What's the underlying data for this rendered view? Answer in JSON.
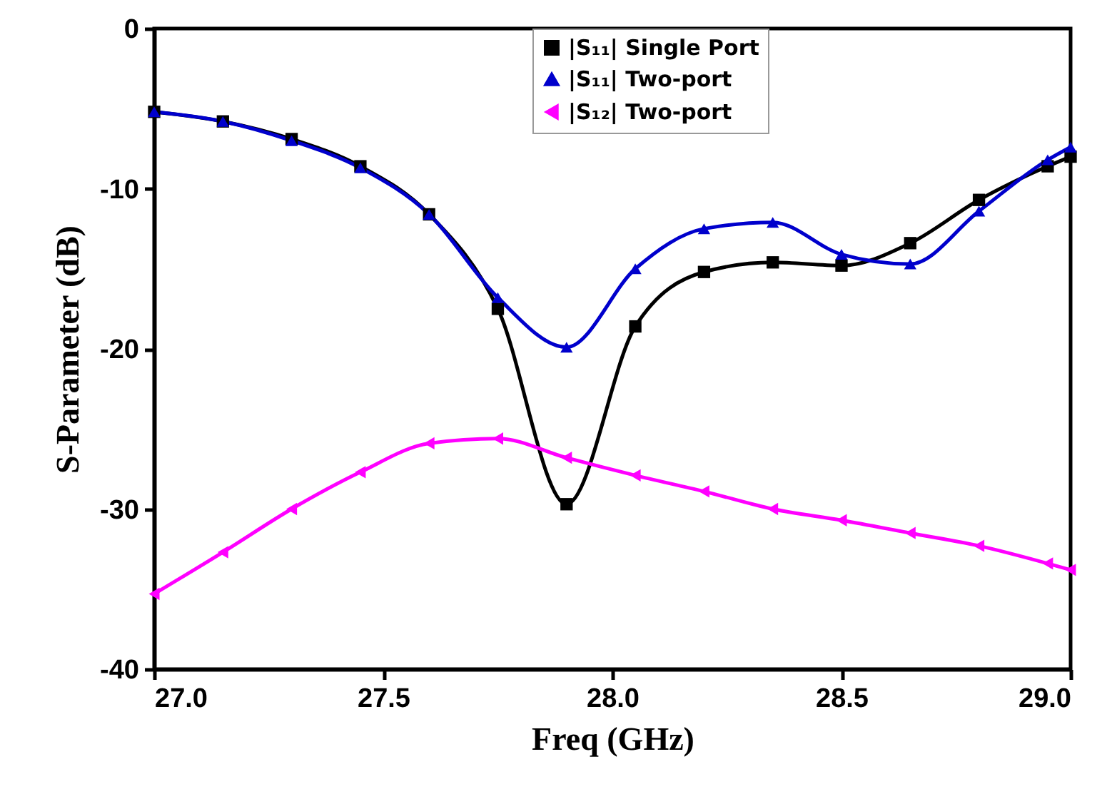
{
  "chart_data": {
    "type": "line",
    "xlabel": "Freq (GHz)",
    "ylabel": "S-Parameter (dB)",
    "x": [
      27.0,
      27.15,
      27.3,
      27.45,
      27.6,
      27.75,
      27.9,
      28.05,
      28.2,
      28.35,
      28.5,
      28.65,
      28.8,
      28.95,
      29.0
    ],
    "series": [
      {
        "name": "|S₁₁| Single Port",
        "color": "#000000",
        "marker": "square",
        "values": [
          -5.2,
          -5.8,
          -6.9,
          -8.6,
          -11.6,
          -17.5,
          -29.7,
          -18.6,
          -15.2,
          -14.6,
          -14.8,
          -13.4,
          -10.7,
          -8.6,
          -8.0
        ]
      },
      {
        "name": "|S₁₁| Two-port",
        "color": "#0000cc",
        "marker": "triangle",
        "values": [
          -5.2,
          -5.8,
          -7.0,
          -8.7,
          -11.6,
          -16.8,
          -19.9,
          -15.0,
          -12.5,
          -12.1,
          -14.1,
          -14.7,
          -11.4,
          -8.2,
          -7.4
        ]
      },
      {
        "name": "|S₁₂| Two-port",
        "color": "#ff00ff",
        "marker": "triangle-left",
        "values": [
          -35.3,
          -32.7,
          -30.0,
          -27.7,
          -25.9,
          -25.6,
          -26.8,
          -27.9,
          -28.9,
          -30.0,
          -30.7,
          -31.5,
          -32.3,
          -33.4,
          -33.8
        ]
      }
    ],
    "xlim": [
      27.0,
      29.0
    ],
    "xticks": [
      {
        "value": 27,
        "label": "27.0"
      },
      {
        "value": 27.5,
        "label": "27.5"
      },
      {
        "value": 28,
        "label": "28.0"
      },
      {
        "value": 28.5,
        "label": "28.5"
      },
      {
        "value": 29,
        "label": "29.0"
      }
    ],
    "ylim": [
      -40,
      0
    ],
    "yticks": [
      -40,
      -30,
      -20,
      -10,
      0
    ],
    "grid": false,
    "legend": "top right",
    "line_style": "solid"
  }
}
